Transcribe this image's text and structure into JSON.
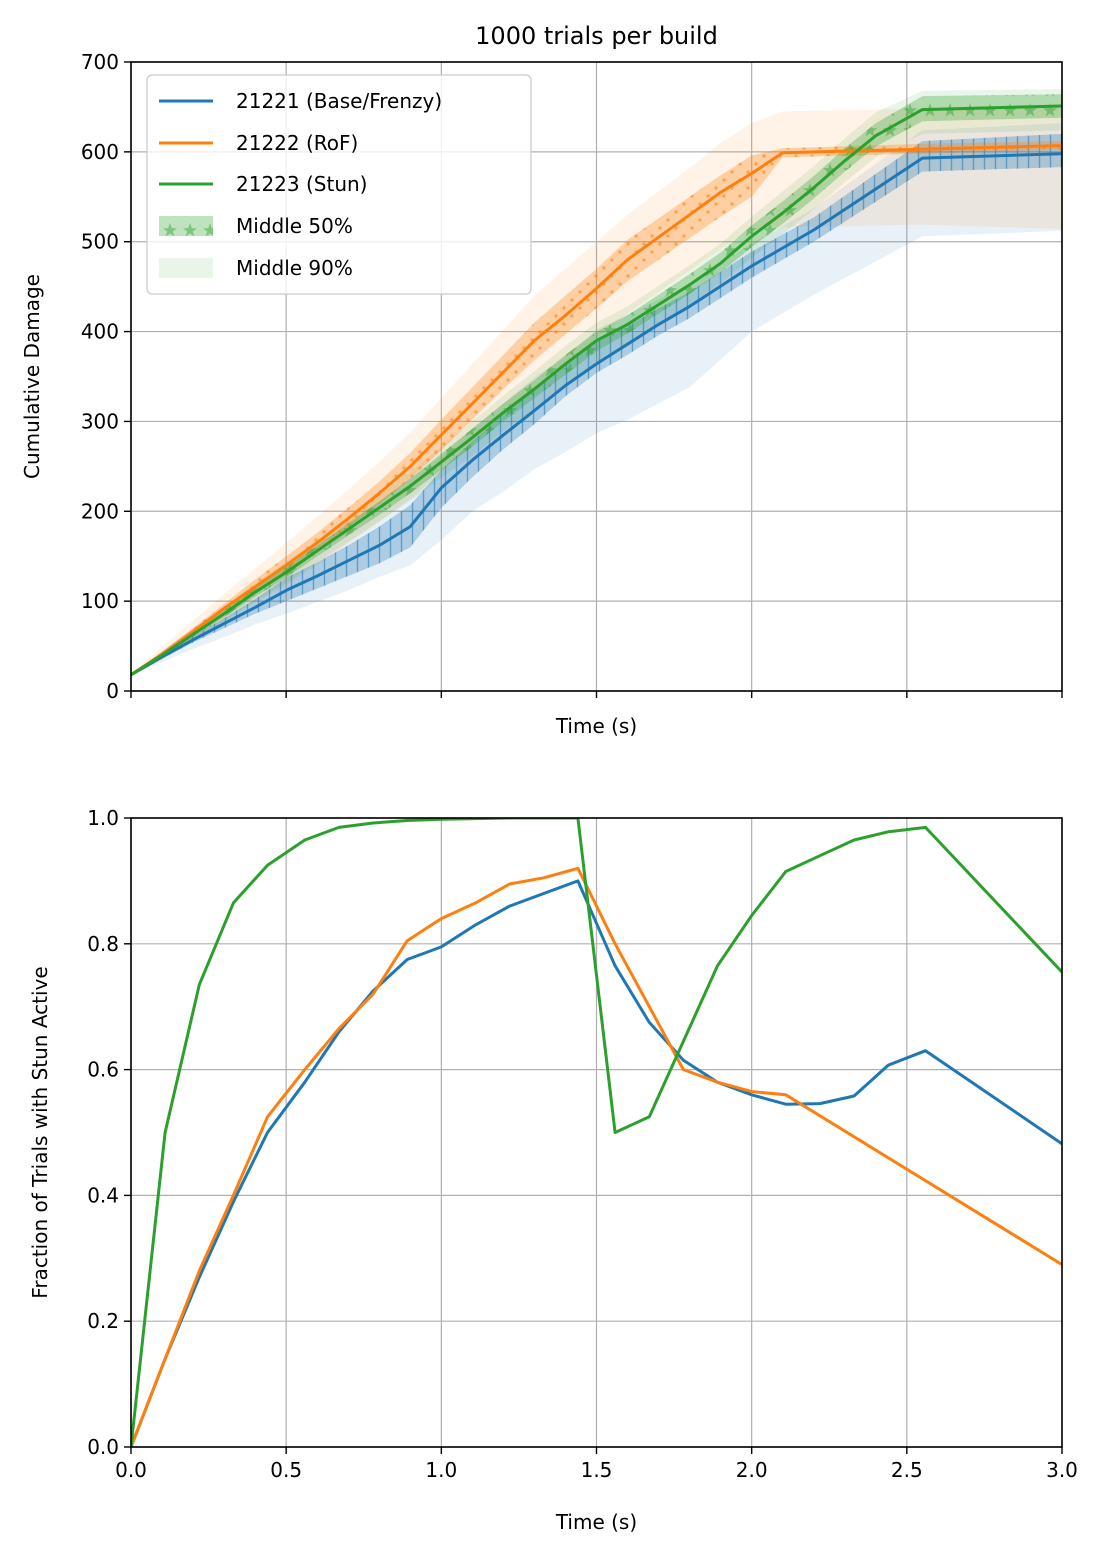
{
  "chart_data": [
    {
      "type": "line",
      "title": "1000 trials per build",
      "xlabel": "Time (s)",
      "ylabel": "Cumulative Damage",
      "xlim": [
        0,
        3
      ],
      "ylim": [
        0,
        700
      ],
      "x_ticks": [
        0,
        0.5,
        1.0,
        1.5,
        2.0,
        2.5,
        3.0
      ],
      "x_tick_labels_visible": false,
      "y_ticks": [
        0,
        100,
        200,
        300,
        400,
        500,
        600,
        700
      ],
      "y_tick_labels": [
        "0",
        "100",
        "200",
        "300",
        "400",
        "500",
        "600",
        "700"
      ],
      "grid": true,
      "legend_position": "top-left",
      "legend": [
        "21221 (Base/Frenzy)",
        "21222 (RoF)",
        "21223 (Stun)",
        "Middle 50%",
        "Middle 90%"
      ],
      "series": [
        {
          "name": "21221 (Base/Frenzy)",
          "color": "#1f77b4",
          "hatch": "vertical-lines",
          "x": [
            0,
            0.1,
            0.2,
            0.3,
            0.4,
            0.5,
            0.6,
            0.7,
            0.8,
            0.9,
            1.0,
            1.1,
            1.2,
            1.3,
            1.4,
            1.5,
            1.6,
            1.7,
            1.8,
            2.0,
            2.2,
            2.55,
            3.0
          ],
          "median": [
            18,
            38,
            57,
            75,
            93,
            112,
            128,
            145,
            162,
            183,
            226,
            257,
            285,
            312,
            340,
            364,
            386,
            408,
            428,
            473,
            513,
            593,
            598
          ],
          "p25": [
            18,
            36,
            54,
            70,
            86,
            100,
            114,
            128,
            142,
            160,
            204,
            238,
            269,
            297,
            328,
            354,
            374,
            396,
            415,
            460,
            500,
            578,
            583
          ],
          "p75": [
            18,
            40,
            61,
            81,
            102,
            126,
            143,
            162,
            183,
            207,
            246,
            278,
            308,
            337,
            363,
            390,
            406,
            426,
            444,
            489,
            527,
            612,
            620
          ],
          "p5": [
            18,
            32,
            47,
            60,
            74,
            86,
            99,
            112,
            127,
            140,
            168,
            200,
            222,
            247,
            266,
            287,
            302,
            320,
            338,
            400,
            441,
            506,
            512
          ],
          "p95": [
            18,
            44,
            70,
            94,
            118,
            142,
            165,
            188,
            211,
            237,
            262,
            292,
            320,
            349,
            372,
            402,
            419,
            436,
            453,
            498,
            537,
            624,
            632
          ]
        },
        {
          "name": "21222 (RoF)",
          "color": "#ff7f0e",
          "hatch": "dots",
          "x": [
            0,
            0.1,
            0.2,
            0.3,
            0.4,
            0.5,
            0.6,
            0.7,
            0.8,
            0.9,
            1.0,
            1.1,
            1.2,
            1.3,
            1.4,
            1.5,
            1.6,
            1.7,
            1.8,
            1.9,
            2.0,
            2.1,
            2.55,
            3.0
          ],
          "median": [
            18,
            41,
            66,
            92,
            116,
            140,
            165,
            192,
            220,
            250,
            285,
            320,
            355,
            390,
            418,
            448,
            480,
            505,
            530,
            555,
            576,
            599,
            603,
            607
          ],
          "p25": [
            18,
            39,
            62,
            87,
            110,
            132,
            156,
            182,
            208,
            236,
            268,
            302,
            336,
            368,
            397,
            426,
            456,
            480,
            504,
            528,
            550,
            594,
            598,
            602
          ],
          "p75": [
            18,
            44,
            70,
            97,
            124,
            150,
            176,
            204,
            233,
            265,
            302,
            338,
            374,
            410,
            440,
            470,
            502,
            526,
            550,
            574,
            596,
            604,
            609,
            612
          ],
          "p5": [
            18,
            34,
            56,
            77,
            98,
            118,
            140,
            164,
            188,
            214,
            243,
            276,
            308,
            338,
            364,
            393,
            420,
            444,
            468,
            492,
            514,
            516,
            519,
            514
          ],
          "p95": [
            18,
            49,
            78,
            108,
            136,
            165,
            194,
            224,
            255,
            288,
            326,
            364,
            402,
            440,
            470,
            500,
            530,
            556,
            582,
            610,
            632,
            645,
            648,
            649
          ]
        },
        {
          "name": "21223 (Stun)",
          "color": "#2ca02c",
          "hatch": "stars",
          "x": [
            0,
            0.1,
            0.2,
            0.3,
            0.4,
            0.5,
            0.6,
            0.7,
            0.8,
            0.9,
            1.0,
            1.1,
            1.2,
            1.3,
            1.4,
            1.5,
            1.6,
            1.7,
            1.8,
            1.9,
            2.0,
            2.1,
            2.2,
            2.3,
            2.4,
            2.55,
            3.0
          ],
          "median": [
            18,
            40,
            63,
            86,
            110,
            132,
            156,
            180,
            204,
            228,
            255,
            282,
            310,
            336,
            364,
            390,
            408,
            430,
            452,
            476,
            506,
            532,
            560,
            590,
            618,
            647,
            651
          ],
          "p25": [
            18,
            38,
            60,
            82,
            105,
            126,
            150,
            173,
            196,
            220,
            246,
            272,
            300,
            326,
            352,
            378,
            398,
            420,
            442,
            466,
            494,
            520,
            548,
            578,
            606,
            634,
            638
          ],
          "p75": [
            18,
            42,
            66,
            90,
            115,
            138,
            162,
            186,
            211,
            236,
            264,
            292,
            320,
            346,
            374,
            400,
            418,
            441,
            464,
            488,
            518,
            545,
            573,
            604,
            632,
            662,
            664
          ],
          "p5": [
            18,
            36,
            57,
            78,
            100,
            120,
            143,
            166,
            189,
            212,
            237,
            262,
            289,
            314,
            340,
            366,
            386,
            408,
            430,
            454,
            482,
            508,
            536,
            566,
            594,
            620,
            624
          ],
          "p95": [
            18,
            44,
            69,
            94,
            120,
            144,
            168,
            193,
            218,
            244,
            272,
            300,
            329,
            356,
            384,
            410,
            428,
            451,
            474,
            498,
            528,
            556,
            584,
            615,
            644,
            668,
            670
          ]
        }
      ]
    },
    {
      "type": "line",
      "title": "",
      "xlabel": "Time (s)",
      "ylabel": "Fraction of Trials with Stun Active",
      "xlim": [
        0,
        3
      ],
      "ylim": [
        0,
        1
      ],
      "x_ticks": [
        0,
        0.5,
        1.0,
        1.5,
        2.0,
        2.5,
        3.0
      ],
      "x_tick_labels": [
        "0.0",
        "0.5",
        "1.0",
        "1.5",
        "2.0",
        "2.5",
        "3.0"
      ],
      "y_ticks": [
        0,
        0.2,
        0.4,
        0.6,
        0.8,
        1.0
      ],
      "y_tick_labels": [
        "0.0",
        "0.2",
        "0.4",
        "0.6",
        "0.8",
        "1.0"
      ],
      "grid": true,
      "series": [
        {
          "name": "21221 (Base/Frenzy)",
          "color": "#1f77b4",
          "x": [
            0,
            0.11,
            0.22,
            0.33,
            0.44,
            0.56,
            0.67,
            0.78,
            0.89,
            1.0,
            1.11,
            1.22,
            1.33,
            1.44,
            1.56,
            1.67,
            1.78,
            1.89,
            2.0,
            2.11,
            2.22,
            2.33,
            2.44,
            2.56,
            3.0
          ],
          "y": [
            0.0,
            0.14,
            0.27,
            0.39,
            0.5,
            0.58,
            0.66,
            0.725,
            0.775,
            0.795,
            0.83,
            0.86,
            0.88,
            0.9,
            0.765,
            0.675,
            0.615,
            0.58,
            0.56,
            0.545,
            0.546,
            0.558,
            0.607,
            0.63,
            0.482
          ]
        },
        {
          "name": "21222 (RoF)",
          "color": "#ff7f0e",
          "x": [
            0,
            0.11,
            0.22,
            0.33,
            0.44,
            0.56,
            0.67,
            0.78,
            0.89,
            1.0,
            1.11,
            1.22,
            1.33,
            1.44,
            1.56,
            1.67,
            1.78,
            1.89,
            2.0,
            2.11,
            3.0
          ],
          "y": [
            0.0,
            0.14,
            0.28,
            0.4,
            0.525,
            0.6,
            0.665,
            0.72,
            0.805,
            0.84,
            0.865,
            0.895,
            0.905,
            0.92,
            0.8,
            0.7,
            0.6,
            0.58,
            0.565,
            0.56,
            0.29
          ]
        },
        {
          "name": "21223 (Stun)",
          "color": "#2ca02c",
          "x": [
            0,
            0.11,
            0.22,
            0.33,
            0.44,
            0.56,
            0.67,
            0.78,
            0.89,
            1.0,
            1.11,
            1.22,
            1.33,
            1.44,
            1.56,
            1.67,
            1.78,
            1.89,
            2.0,
            2.11,
            2.22,
            2.33,
            2.44,
            2.56,
            3.0
          ],
          "y": [
            0.0,
            0.5,
            0.735,
            0.865,
            0.925,
            0.965,
            0.985,
            0.992,
            0.996,
            0.998,
            0.999,
            1.0,
            1.0,
            1.0,
            0.5,
            0.525,
            0.645,
            0.765,
            0.845,
            0.915,
            0.94,
            0.965,
            0.978,
            0.985,
            0.755
          ]
        }
      ]
    }
  ]
}
